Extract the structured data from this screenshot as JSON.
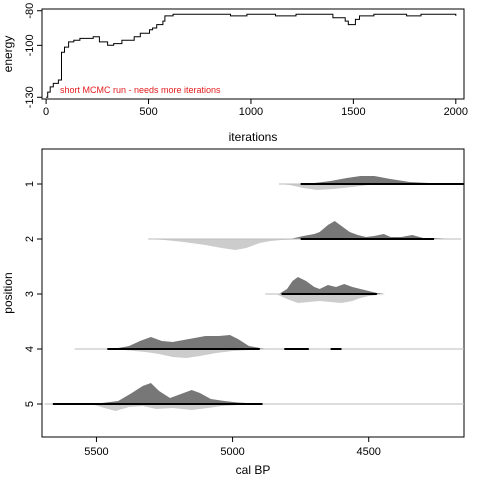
{
  "chart_data": [
    {
      "type": "line",
      "xlabel": "iterations",
      "ylabel": "energy",
      "xlim": [
        -20,
        2040
      ],
      "ylim": [
        -131,
        -79
      ],
      "xticks": [
        0,
        500,
        1000,
        1500,
        2000
      ],
      "yticks": [
        -130,
        -100,
        -80
      ],
      "annotation": "short MCMC run - needs more iterations",
      "annotation_color": "#e41a1c",
      "trace": [
        [
          0,
          -130
        ],
        [
          8,
          -127
        ],
        [
          20,
          -124
        ],
        [
          35,
          -122
        ],
        [
          60,
          -120
        ],
        [
          75,
          -104
        ],
        [
          90,
          -101
        ],
        [
          110,
          -98
        ],
        [
          135,
          -97
        ],
        [
          165,
          -96
        ],
        [
          200,
          -96
        ],
        [
          230,
          -95
        ],
        [
          260,
          -98
        ],
        [
          300,
          -100
        ],
        [
          330,
          -99
        ],
        [
          350,
          -99
        ],
        [
          370,
          -97
        ],
        [
          400,
          -97
        ],
        [
          430,
          -95
        ],
        [
          460,
          -93
        ],
        [
          490,
          -93
        ],
        [
          505,
          -91
        ],
        [
          520,
          -90
        ],
        [
          540,
          -88
        ],
        [
          555,
          -88
        ],
        [
          570,
          -86
        ],
        [
          580,
          -83
        ],
        [
          620,
          -82
        ],
        [
          700,
          -82
        ],
        [
          760,
          -82
        ],
        [
          820,
          -82
        ],
        [
          900,
          -83
        ],
        [
          980,
          -82
        ],
        [
          1050,
          -82
        ],
        [
          1120,
          -83
        ],
        [
          1180,
          -83
        ],
        [
          1220,
          -82
        ],
        [
          1300,
          -82
        ],
        [
          1360,
          -82
        ],
        [
          1400,
          -84
        ],
        [
          1430,
          -84
        ],
        [
          1460,
          -86
        ],
        [
          1475,
          -88
        ],
        [
          1510,
          -85
        ],
        [
          1530,
          -83
        ],
        [
          1600,
          -82
        ],
        [
          1680,
          -82
        ],
        [
          1760,
          -83
        ],
        [
          1830,
          -82
        ],
        [
          1900,
          -82
        ],
        [
          1960,
          -82
        ],
        [
          1985,
          -82
        ],
        [
          2000,
          -83
        ]
      ]
    },
    {
      "type": "ridgeline",
      "xlabel": "cal BP",
      "ylabel": "position",
      "x_reversed": true,
      "xlim": [
        5700,
        4150
      ],
      "xticks": [
        5500,
        5000,
        4500
      ],
      "categories": [
        "1",
        "2",
        "3",
        "4",
        "5"
      ],
      "fill_upper": "#777777",
      "fill_lower": "#cccccc",
      "rows": [
        {
          "position": "1",
          "baseline": [
            4830,
            4150
          ],
          "range": [
            4750,
            4150
          ],
          "upper": [
            [
              4760,
              0
            ],
            [
              4700,
              1
            ],
            [
              4640,
              3
            ],
            [
              4580,
              6
            ],
            [
              4530,
              8
            ],
            [
              4480,
              8
            ],
            [
              4420,
              5
            ],
            [
              4350,
              2
            ],
            [
              4280,
              1
            ],
            [
              4200,
              1
            ],
            [
              4160,
              1
            ]
          ],
          "lower": [
            [
              4830,
              0
            ],
            [
              4790,
              1
            ],
            [
              4740,
              4
            ],
            [
              4690,
              6
            ],
            [
              4630,
              5
            ],
            [
              4560,
              3
            ],
            [
              4500,
              1
            ],
            [
              4420,
              0.5
            ],
            [
              4300,
              0
            ]
          ]
        },
        {
          "position": "2",
          "baseline": [
            5310,
            4160
          ],
          "range": [
            4750,
            4260
          ],
          "upper": [
            [
              4790,
              0
            ],
            [
              4740,
              3
            ],
            [
              4700,
              5
            ],
            [
              4680,
              7
            ],
            [
              4650,
              14
            ],
            [
              4625,
              18
            ],
            [
              4600,
              13
            ],
            [
              4570,
              7
            ],
            [
              4540,
              4
            ],
            [
              4510,
              2
            ],
            [
              4480,
              3
            ],
            [
              4445,
              5
            ],
            [
              4420,
              2
            ],
            [
              4380,
              2
            ],
            [
              4340,
              4
            ],
            [
              4300,
              1
            ],
            [
              4260,
              1
            ],
            [
              4180,
              0
            ]
          ],
          "lower": [
            [
              5310,
              0
            ],
            [
              5250,
              1
            ],
            [
              5180,
              3
            ],
            [
              5100,
              6
            ],
            [
              5040,
              9
            ],
            [
              4990,
              11
            ],
            [
              4950,
              9
            ],
            [
              4900,
              4
            ],
            [
              4860,
              2
            ],
            [
              4820,
              1
            ],
            [
              4760,
              0.5
            ],
            [
              4700,
              0
            ]
          ]
        },
        {
          "position": "3",
          "baseline": [
            4880,
            4480
          ],
          "range": [
            4820,
            4470
          ],
          "upper": [
            [
              4830,
              0
            ],
            [
              4800,
              5
            ],
            [
              4780,
              13
            ],
            [
              4760,
              17
            ],
            [
              4730,
              13
            ],
            [
              4700,
              7
            ],
            [
              4680,
              5
            ],
            [
              4650,
              9
            ],
            [
              4620,
              7
            ],
            [
              4590,
              10
            ],
            [
              4560,
              7
            ],
            [
              4530,
              5
            ],
            [
              4500,
              3
            ],
            [
              4470,
              1
            ],
            [
              4440,
              0
            ]
          ],
          "lower": [
            [
              4840,
              0
            ],
            [
              4800,
              5
            ],
            [
              4760,
              9
            ],
            [
              4720,
              8
            ],
            [
              4680,
              7
            ],
            [
              4640,
              8
            ],
            [
              4600,
              9
            ],
            [
              4560,
              7
            ],
            [
              4530,
              4
            ],
            [
              4500,
              2
            ],
            [
              4470,
              1
            ],
            [
              4440,
              0
            ]
          ]
        },
        {
          "position": "4",
          "baseline": [
            5580,
            4150
          ],
          "range": [
            5460,
            4900
          ],
          "extra_ranges": [
            [
              4810,
              4720
            ],
            [
              4640,
              4600
            ]
          ],
          "upper": [
            [
              5490,
              0
            ],
            [
              5420,
              1
            ],
            [
              5380,
              3
            ],
            [
              5340,
              8
            ],
            [
              5300,
              12
            ],
            [
              5260,
              8
            ],
            [
              5220,
              7
            ],
            [
              5180,
              9
            ],
            [
              5140,
              11
            ],
            [
              5100,
              13
            ],
            [
              5050,
              13
            ],
            [
              5010,
              14
            ],
            [
              4980,
              10
            ],
            [
              4940,
              3
            ],
            [
              4900,
              1
            ],
            [
              4860,
              0
            ]
          ],
          "lower": [
            [
              5500,
              0
            ],
            [
              5400,
              1
            ],
            [
              5320,
              3
            ],
            [
              5270,
              5
            ],
            [
              5220,
              8
            ],
            [
              5170,
              9
            ],
            [
              5120,
              7
            ],
            [
              5060,
              4
            ],
            [
              5000,
              2
            ],
            [
              4940,
              1
            ],
            [
              4880,
              0
            ]
          ]
        },
        {
          "position": "5",
          "baseline": [
            5690,
            4150
          ],
          "range": [
            5660,
            4890
          ],
          "upper": [
            [
              5560,
              0
            ],
            [
              5480,
              1
            ],
            [
              5420,
              3
            ],
            [
              5370,
              11
            ],
            [
              5330,
              18
            ],
            [
              5300,
              21
            ],
            [
              5270,
              13
            ],
            [
              5230,
              6
            ],
            [
              5190,
              10
            ],
            [
              5150,
              14
            ],
            [
              5120,
              11
            ],
            [
              5080,
              5
            ],
            [
              5030,
              3
            ],
            [
              4980,
              1.5
            ],
            [
              4920,
              0.5
            ],
            [
              4880,
              0
            ]
          ],
          "lower": [
            [
              5520,
              0
            ],
            [
              5470,
              4
            ],
            [
              5430,
              7
            ],
            [
              5380,
              3
            ],
            [
              5330,
              2
            ],
            [
              5280,
              5
            ],
            [
              5220,
              4
            ],
            [
              5150,
              6
            ],
            [
              5090,
              4
            ],
            [
              5040,
              2
            ],
            [
              4980,
              1
            ],
            [
              4900,
              0
            ]
          ]
        }
      ]
    }
  ]
}
